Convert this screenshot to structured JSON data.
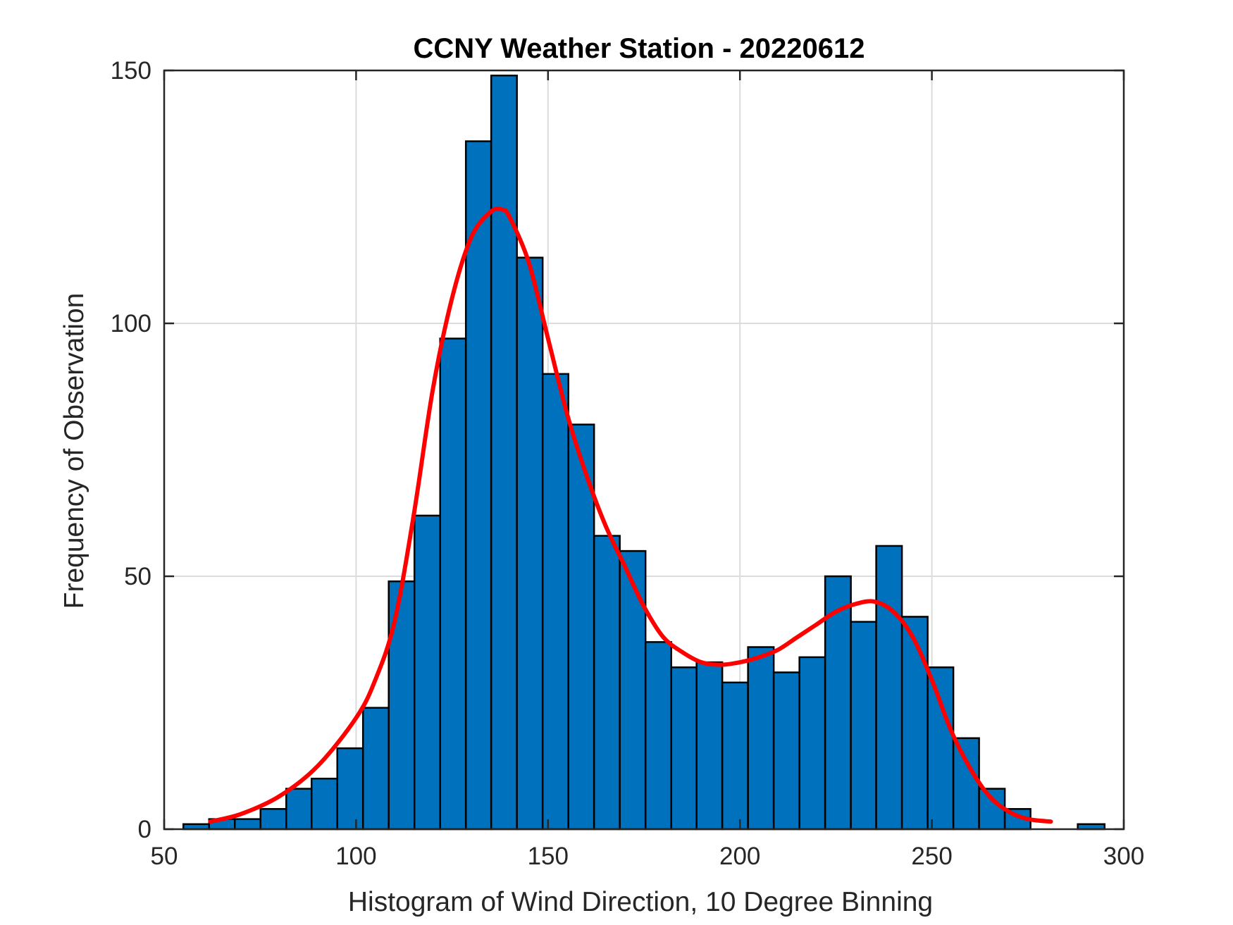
{
  "chart_data": {
    "type": "bar",
    "title": "CCNY Weather Station - 20220612",
    "xlabel": "Histogram of Wind Direction, 10 Degree Binning",
    "ylabel": "Frequency of Observation",
    "xlim": [
      50,
      300
    ],
    "ylim": [
      0,
      150
    ],
    "xticks": [
      "50",
      "100",
      "150",
      "200",
      "250",
      "300"
    ],
    "yticks": [
      "0",
      "50",
      "100",
      "150"
    ],
    "grid": true,
    "bar_color": "#0072BD",
    "fit_color": "#FF0000",
    "bins": [
      {
        "x0": 55.0,
        "x1": 61.7,
        "value": 1
      },
      {
        "x0": 61.7,
        "x1": 68.4,
        "value": 2
      },
      {
        "x0": 68.4,
        "x1": 75.1,
        "value": 2
      },
      {
        "x0": 75.1,
        "x1": 81.8,
        "value": 4
      },
      {
        "x0": 81.8,
        "x1": 88.4,
        "value": 8
      },
      {
        "x0": 88.4,
        "x1": 95.1,
        "value": 10
      },
      {
        "x0": 95.1,
        "x1": 101.8,
        "value": 16
      },
      {
        "x0": 101.8,
        "x1": 108.5,
        "value": 24
      },
      {
        "x0": 108.5,
        "x1": 115.2,
        "value": 49
      },
      {
        "x0": 115.2,
        "x1": 121.9,
        "value": 62
      },
      {
        "x0": 121.9,
        "x1": 128.6,
        "value": 97
      },
      {
        "x0": 128.6,
        "x1": 135.2,
        "value": 136
      },
      {
        "x0": 135.2,
        "x1": 141.9,
        "value": 149
      },
      {
        "x0": 141.9,
        "x1": 148.6,
        "value": 113
      },
      {
        "x0": 148.6,
        "x1": 155.3,
        "value": 90
      },
      {
        "x0": 155.3,
        "x1": 162.0,
        "value": 80
      },
      {
        "x0": 162.0,
        "x1": 168.7,
        "value": 58
      },
      {
        "x0": 168.7,
        "x1": 175.4,
        "value": 55
      },
      {
        "x0": 175.4,
        "x1": 182.1,
        "value": 37
      },
      {
        "x0": 182.1,
        "x1": 188.7,
        "value": 32
      },
      {
        "x0": 188.7,
        "x1": 195.4,
        "value": 33
      },
      {
        "x0": 195.4,
        "x1": 202.1,
        "value": 29
      },
      {
        "x0": 202.1,
        "x1": 208.8,
        "value": 36
      },
      {
        "x0": 208.8,
        "x1": 215.5,
        "value": 31
      },
      {
        "x0": 215.5,
        "x1": 222.2,
        "value": 34
      },
      {
        "x0": 222.2,
        "x1": 228.9,
        "value": 50
      },
      {
        "x0": 228.9,
        "x1": 235.5,
        "value": 41
      },
      {
        "x0": 235.5,
        "x1": 242.2,
        "value": 56
      },
      {
        "x0": 242.2,
        "x1": 248.9,
        "value": 42
      },
      {
        "x0": 248.9,
        "x1": 255.6,
        "value": 32
      },
      {
        "x0": 255.6,
        "x1": 262.3,
        "value": 18
      },
      {
        "x0": 262.3,
        "x1": 269.0,
        "value": 8
      },
      {
        "x0": 269.0,
        "x1": 275.7,
        "value": 4
      },
      {
        "x0": 288.0,
        "x1": 295.0,
        "value": 1
      }
    ],
    "fit": {
      "x": [
        62,
        70,
        80,
        90,
        100,
        105,
        110,
        115,
        120,
        125,
        130,
        135,
        138,
        140,
        145,
        150,
        155,
        160,
        165,
        170,
        175,
        180,
        185,
        190,
        195,
        200,
        205,
        210,
        215,
        220,
        225,
        230,
        235,
        240,
        245,
        250,
        255,
        260,
        265,
        270,
        275,
        281
      ],
      "y": [
        1.5,
        3,
        6.5,
        12.5,
        22,
        29.5,
        41,
        62,
        87,
        105,
        117,
        122,
        122.5,
        121,
        112,
        97,
        82,
        70,
        60,
        52,
        44,
        38,
        35,
        33,
        32.5,
        33,
        34,
        35.5,
        38,
        40.5,
        43,
        44.5,
        45,
        43,
        38,
        29.5,
        19.5,
        12,
        6.5,
        3.5,
        2,
        1.5
      ]
    }
  }
}
